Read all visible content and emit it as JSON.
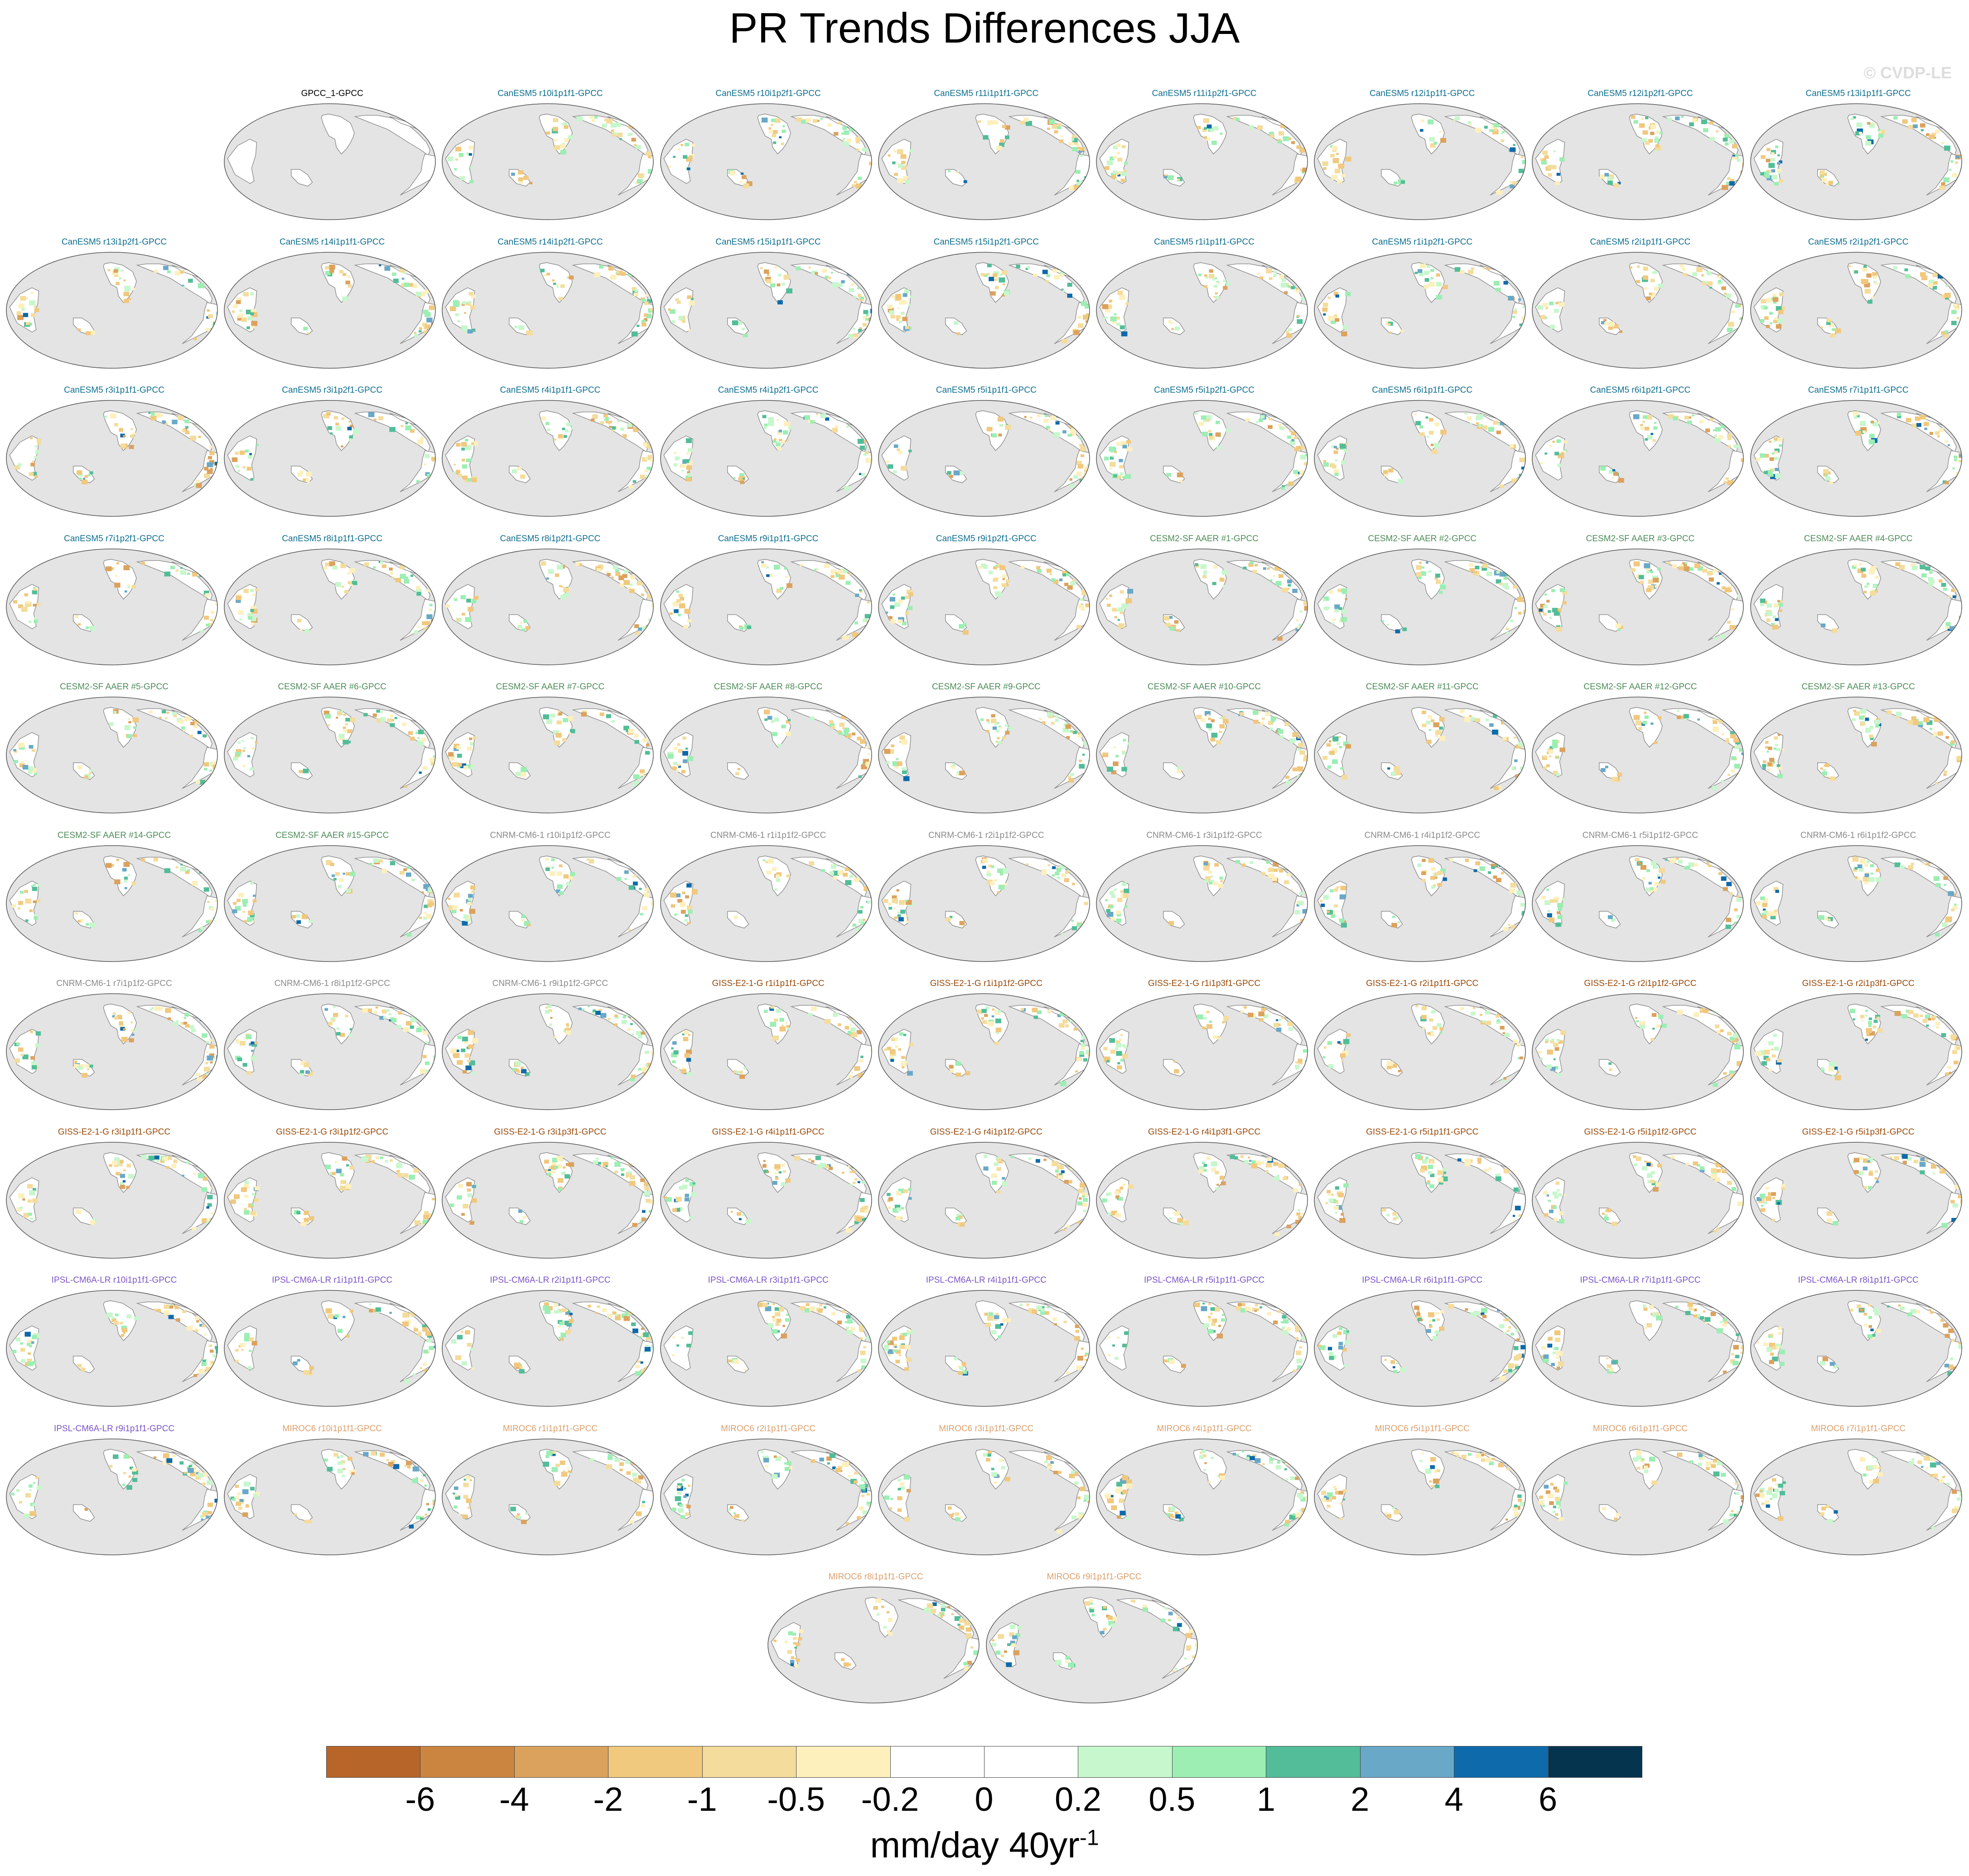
{
  "title": "PR Trends Differences JJA",
  "watermark": "© CVDP-LE",
  "units_main": "mm/day 40yr",
  "units_sup": "-1",
  "chart_data": {
    "type": "heatmap",
    "title": "PR Trends Differences JJA",
    "colorbar": {
      "ticks": [
        "-6",
        "-4",
        "-2",
        "-1",
        "-0.5",
        "-0.2",
        "0",
        "0.2",
        "0.5",
        "1",
        "2",
        "4",
        "6"
      ],
      "colors": [
        "#b8652a",
        "#cc8540",
        "#dba25e",
        "#f0c87e",
        "#f4dc9c",
        "#fdf0bd",
        "#ffffff",
        "#ffffff",
        "#c7f7cc",
        "#9ceeb3",
        "#52bd98",
        "#69a8c7",
        "#0e6aaa",
        "#05344f"
      ]
    },
    "model_colors": {
      "obs": "#000000",
      "CanESM5": "#0d6e8f",
      "CESM2-SF AAER": "#4d8c58",
      "CNRM-CM6-1": "#8a8a8a",
      "GISS-E2-1-G": "#9a4a0a",
      "IPSL-CM6A-LR": "#7b55c6",
      "MIROC6": "#dca06c"
    },
    "panels": [
      {
        "label": "GPCC_1-GPCC",
        "model": "obs"
      },
      {
        "label": "CanESM5 r10i1p1f1-GPCC",
        "model": "CanESM5"
      },
      {
        "label": "CanESM5 r10i1p2f1-GPCC",
        "model": "CanESM5"
      },
      {
        "label": "CanESM5 r11i1p1f1-GPCC",
        "model": "CanESM5"
      },
      {
        "label": "CanESM5 r11i1p2f1-GPCC",
        "model": "CanESM5"
      },
      {
        "label": "CanESM5 r12i1p1f1-GPCC",
        "model": "CanESM5"
      },
      {
        "label": "CanESM5 r12i1p2f1-GPCC",
        "model": "CanESM5"
      },
      {
        "label": "CanESM5 r13i1p1f1-GPCC",
        "model": "CanESM5"
      },
      {
        "label": "CanESM5 r13i1p2f1-GPCC",
        "model": "CanESM5"
      },
      {
        "label": "CanESM5 r14i1p1f1-GPCC",
        "model": "CanESM5"
      },
      {
        "label": "CanESM5 r14i1p2f1-GPCC",
        "model": "CanESM5"
      },
      {
        "label": "CanESM5 r15i1p1f1-GPCC",
        "model": "CanESM5"
      },
      {
        "label": "CanESM5 r15i1p2f1-GPCC",
        "model": "CanESM5"
      },
      {
        "label": "CanESM5 r1i1p1f1-GPCC",
        "model": "CanESM5"
      },
      {
        "label": "CanESM5 r1i1p2f1-GPCC",
        "model": "CanESM5"
      },
      {
        "label": "CanESM5 r2i1p1f1-GPCC",
        "model": "CanESM5"
      },
      {
        "label": "CanESM5 r2i1p2f1-GPCC",
        "model": "CanESM5"
      },
      {
        "label": "CanESM5 r3i1p1f1-GPCC",
        "model": "CanESM5"
      },
      {
        "label": "CanESM5 r3i1p2f1-GPCC",
        "model": "CanESM5"
      },
      {
        "label": "CanESM5 r4i1p1f1-GPCC",
        "model": "CanESM5"
      },
      {
        "label": "CanESM5 r4i1p2f1-GPCC",
        "model": "CanESM5"
      },
      {
        "label": "CanESM5 r5i1p1f1-GPCC",
        "model": "CanESM5"
      },
      {
        "label": "CanESM5 r5i1p2f1-GPCC",
        "model": "CanESM5"
      },
      {
        "label": "CanESM5 r6i1p1f1-GPCC",
        "model": "CanESM5"
      },
      {
        "label": "CanESM5 r6i1p2f1-GPCC",
        "model": "CanESM5"
      },
      {
        "label": "CanESM5 r7i1p1f1-GPCC",
        "model": "CanESM5"
      },
      {
        "label": "CanESM5 r7i1p2f1-GPCC",
        "model": "CanESM5"
      },
      {
        "label": "CanESM5 r8i1p1f1-GPCC",
        "model": "CanESM5"
      },
      {
        "label": "CanESM5 r8i1p2f1-GPCC",
        "model": "CanESM5"
      },
      {
        "label": "CanESM5 r9i1p1f1-GPCC",
        "model": "CanESM5"
      },
      {
        "label": "CanESM5 r9i1p2f1-GPCC",
        "model": "CanESM5"
      },
      {
        "label": "CESM2-SF AAER #1-GPCC",
        "model": "CESM2-SF AAER"
      },
      {
        "label": "CESM2-SF AAER #2-GPCC",
        "model": "CESM2-SF AAER"
      },
      {
        "label": "CESM2-SF AAER #3-GPCC",
        "model": "CESM2-SF AAER"
      },
      {
        "label": "CESM2-SF AAER #4-GPCC",
        "model": "CESM2-SF AAER"
      },
      {
        "label": "CESM2-SF AAER #5-GPCC",
        "model": "CESM2-SF AAER"
      },
      {
        "label": "CESM2-SF AAER #6-GPCC",
        "model": "CESM2-SF AAER"
      },
      {
        "label": "CESM2-SF AAER #7-GPCC",
        "model": "CESM2-SF AAER"
      },
      {
        "label": "CESM2-SF AAER #8-GPCC",
        "model": "CESM2-SF AAER"
      },
      {
        "label": "CESM2-SF AAER #9-GPCC",
        "model": "CESM2-SF AAER"
      },
      {
        "label": "CESM2-SF AAER #10-GPCC",
        "model": "CESM2-SF AAER"
      },
      {
        "label": "CESM2-SF AAER #11-GPCC",
        "model": "CESM2-SF AAER"
      },
      {
        "label": "CESM2-SF AAER #12-GPCC",
        "model": "CESM2-SF AAER"
      },
      {
        "label": "CESM2-SF AAER #13-GPCC",
        "model": "CESM2-SF AAER"
      },
      {
        "label": "CESM2-SF AAER #14-GPCC",
        "model": "CESM2-SF AAER"
      },
      {
        "label": "CESM2-SF AAER #15-GPCC",
        "model": "CESM2-SF AAER"
      },
      {
        "label": "CNRM-CM6-1 r10i1p1f2-GPCC",
        "model": "CNRM-CM6-1"
      },
      {
        "label": "CNRM-CM6-1 r1i1p1f2-GPCC",
        "model": "CNRM-CM6-1"
      },
      {
        "label": "CNRM-CM6-1 r2i1p1f2-GPCC",
        "model": "CNRM-CM6-1"
      },
      {
        "label": "CNRM-CM6-1 r3i1p1f2-GPCC",
        "model": "CNRM-CM6-1"
      },
      {
        "label": "CNRM-CM6-1 r4i1p1f2-GPCC",
        "model": "CNRM-CM6-1"
      },
      {
        "label": "CNRM-CM6-1 r5i1p1f2-GPCC",
        "model": "CNRM-CM6-1"
      },
      {
        "label": "CNRM-CM6-1 r6i1p1f2-GPCC",
        "model": "CNRM-CM6-1"
      },
      {
        "label": "CNRM-CM6-1 r7i1p1f2-GPCC",
        "model": "CNRM-CM6-1"
      },
      {
        "label": "CNRM-CM6-1 r8i1p1f2-GPCC",
        "model": "CNRM-CM6-1"
      },
      {
        "label": "CNRM-CM6-1 r9i1p1f2-GPCC",
        "model": "CNRM-CM6-1"
      },
      {
        "label": "GISS-E2-1-G r1i1p1f1-GPCC",
        "model": "GISS-E2-1-G"
      },
      {
        "label": "GISS-E2-1-G r1i1p1f2-GPCC",
        "model": "GISS-E2-1-G"
      },
      {
        "label": "GISS-E2-1-G r1i1p3f1-GPCC",
        "model": "GISS-E2-1-G"
      },
      {
        "label": "GISS-E2-1-G r2i1p1f1-GPCC",
        "model": "GISS-E2-1-G"
      },
      {
        "label": "GISS-E2-1-G r2i1p1f2-GPCC",
        "model": "GISS-E2-1-G"
      },
      {
        "label": "GISS-E2-1-G r2i1p3f1-GPCC",
        "model": "GISS-E2-1-G"
      },
      {
        "label": "GISS-E2-1-G r3i1p1f1-GPCC",
        "model": "GISS-E2-1-G"
      },
      {
        "label": "GISS-E2-1-G r3i1p1f2-GPCC",
        "model": "GISS-E2-1-G"
      },
      {
        "label": "GISS-E2-1-G r3i1p3f1-GPCC",
        "model": "GISS-E2-1-G"
      },
      {
        "label": "GISS-E2-1-G r4i1p1f1-GPCC",
        "model": "GISS-E2-1-G"
      },
      {
        "label": "GISS-E2-1-G r4i1p1f2-GPCC",
        "model": "GISS-E2-1-G"
      },
      {
        "label": "GISS-E2-1-G r4i1p3f1-GPCC",
        "model": "GISS-E2-1-G"
      },
      {
        "label": "GISS-E2-1-G r5i1p1f1-GPCC",
        "model": "GISS-E2-1-G"
      },
      {
        "label": "GISS-E2-1-G r5i1p1f2-GPCC",
        "model": "GISS-E2-1-G"
      },
      {
        "label": "GISS-E2-1-G r5i1p3f1-GPCC",
        "model": "GISS-E2-1-G"
      },
      {
        "label": "IPSL-CM6A-LR r10i1p1f1-GPCC",
        "model": "IPSL-CM6A-LR"
      },
      {
        "label": "IPSL-CM6A-LR r1i1p1f1-GPCC",
        "model": "IPSL-CM6A-LR"
      },
      {
        "label": "IPSL-CM6A-LR r2i1p1f1-GPCC",
        "model": "IPSL-CM6A-LR"
      },
      {
        "label": "IPSL-CM6A-LR r3i1p1f1-GPCC",
        "model": "IPSL-CM6A-LR"
      },
      {
        "label": "IPSL-CM6A-LR r4i1p1f1-GPCC",
        "model": "IPSL-CM6A-LR"
      },
      {
        "label": "IPSL-CM6A-LR r5i1p1f1-GPCC",
        "model": "IPSL-CM6A-LR"
      },
      {
        "label": "IPSL-CM6A-LR r6i1p1f1-GPCC",
        "model": "IPSL-CM6A-LR"
      },
      {
        "label": "IPSL-CM6A-LR r7i1p1f1-GPCC",
        "model": "IPSL-CM6A-LR"
      },
      {
        "label": "IPSL-CM6A-LR r8i1p1f1-GPCC",
        "model": "IPSL-CM6A-LR"
      },
      {
        "label": "IPSL-CM6A-LR r9i1p1f1-GPCC",
        "model": "IPSL-CM6A-LR"
      },
      {
        "label": "MIROC6 r10i1p1f1-GPCC",
        "model": "MIROC6"
      },
      {
        "label": "MIROC6 r1i1p1f1-GPCC",
        "model": "MIROC6"
      },
      {
        "label": "MIROC6 r2i1p1f1-GPCC",
        "model": "MIROC6"
      },
      {
        "label": "MIROC6 r3i1p1f1-GPCC",
        "model": "MIROC6"
      },
      {
        "label": "MIROC6 r4i1p1f1-GPCC",
        "model": "MIROC6"
      },
      {
        "label": "MIROC6 r5i1p1f1-GPCC",
        "model": "MIROC6"
      },
      {
        "label": "MIROC6 r6i1p1f1-GPCC",
        "model": "MIROC6"
      },
      {
        "label": "MIROC6 r7i1p1f1-GPCC",
        "model": "MIROC6"
      },
      {
        "label": "MIROC6 r8i1p1f1-GPCC",
        "model": "MIROC6"
      },
      {
        "label": "MIROC6 r9i1p1f1-GPCC",
        "model": "MIROC6"
      }
    ]
  }
}
